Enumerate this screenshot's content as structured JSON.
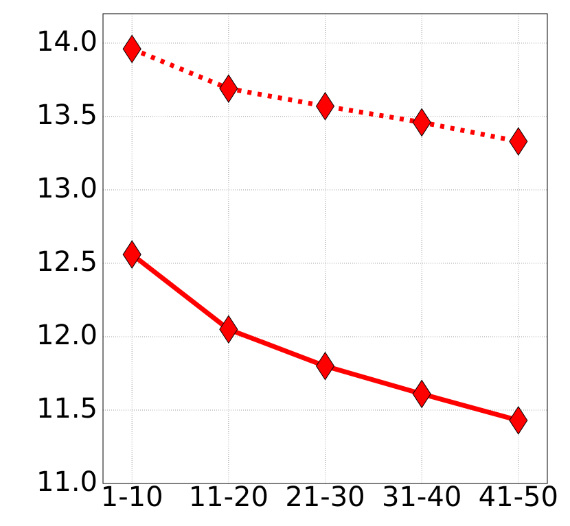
{
  "chart_data": {
    "type": "line",
    "categories": [
      "1-10",
      "11-20",
      "21-30",
      "31-40",
      "41-50"
    ],
    "series": [
      {
        "color": "#ff0000",
        "style": "dotted",
        "marker": "diamond",
        "values": [
          13.96,
          13.69,
          13.57,
          13.46,
          13.33
        ]
      },
      {
        "color": "#ff0000",
        "style": "solid",
        "marker": "diamond",
        "values": [
          12.56,
          12.05,
          11.8,
          11.61,
          11.43
        ]
      }
    ],
    "ylim": [
      11.0,
      14.2
    ],
    "yticks": [
      {
        "value": 11,
        "label": "11.0"
      },
      11.5,
      {
        "value": 12,
        "label": "12.0"
      },
      12.5,
      {
        "value": 13,
        "label": "13.0"
      },
      13.5,
      {
        "value": 14,
        "label": "14.0"
      }
    ],
    "grid": true
  }
}
